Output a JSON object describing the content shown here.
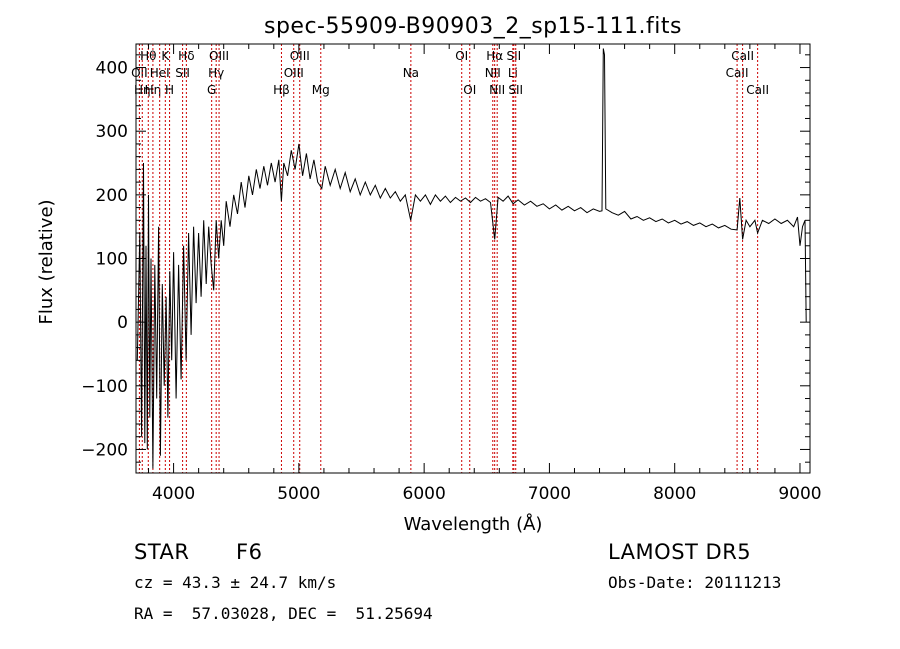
{
  "chart_data": {
    "type": "line",
    "title": "spec-55909-B90903_2_sp15-111.fits",
    "xlabel": "Wavelength (Å)",
    "ylabel": "Flux (relative)",
    "xlim": [
      3700,
      9080
    ],
    "ylim": [
      -237,
      437
    ],
    "xticks": [
      4000,
      5000,
      6000,
      7000,
      8000,
      9000
    ],
    "yticks": [
      -200,
      -100,
      0,
      100,
      200,
      300,
      400
    ],
    "grid": false,
    "line_color": "#000000",
    "marker_color": "#cc0000",
    "series": [
      {
        "values": [
          [
            3710,
            -60
          ],
          [
            3730,
            140
          ],
          [
            3745,
            -180
          ],
          [
            3760,
            250
          ],
          [
            3770,
            -190
          ],
          [
            3780,
            120
          ],
          [
            3790,
            -200
          ],
          [
            3800,
            200
          ],
          [
            3810,
            -150
          ],
          [
            3820,
            100
          ],
          [
            3835,
            -230
          ],
          [
            3850,
            90
          ],
          [
            3865,
            -120
          ],
          [
            3880,
            150
          ],
          [
            3895,
            -210
          ],
          [
            3910,
            60
          ],
          [
            3925,
            -100
          ],
          [
            3940,
            40
          ],
          [
            3955,
            -150
          ],
          [
            3970,
            80
          ],
          [
            3985,
            -60
          ],
          [
            4000,
            110
          ],
          [
            4020,
            -120
          ],
          [
            4040,
            90
          ],
          [
            4060,
            -90
          ],
          [
            4080,
            120
          ],
          [
            4100,
            -60
          ],
          [
            4120,
            140
          ],
          [
            4140,
            -20
          ],
          [
            4160,
            150
          ],
          [
            4180,
            30
          ],
          [
            4200,
            140
          ],
          [
            4220,
            40
          ],
          [
            4240,
            160
          ],
          [
            4260,
            60
          ],
          [
            4280,
            150
          ],
          [
            4300,
            90
          ],
          [
            4320,
            50
          ],
          [
            4340,
            160
          ],
          [
            4360,
            100
          ],
          [
            4380,
            160
          ],
          [
            4400,
            120
          ],
          [
            4420,
            190
          ],
          [
            4450,
            150
          ],
          [
            4480,
            200
          ],
          [
            4510,
            170
          ],
          [
            4540,
            220
          ],
          [
            4570,
            180
          ],
          [
            4600,
            230
          ],
          [
            4630,
            200
          ],
          [
            4660,
            240
          ],
          [
            4690,
            210
          ],
          [
            4720,
            245
          ],
          [
            4750,
            215
          ],
          [
            4780,
            250
          ],
          [
            4810,
            220
          ],
          [
            4840,
            255
          ],
          [
            4861,
            190
          ],
          [
            4880,
            250
          ],
          [
            4910,
            230
          ],
          [
            4940,
            270
          ],
          [
            4970,
            240
          ],
          [
            5000,
            280
          ],
          [
            5030,
            230
          ],
          [
            5060,
            265
          ],
          [
            5090,
            225
          ],
          [
            5120,
            255
          ],
          [
            5150,
            220
          ],
          [
            5183,
            210
          ],
          [
            5210,
            245
          ],
          [
            5250,
            215
          ],
          [
            5290,
            240
          ],
          [
            5330,
            210
          ],
          [
            5370,
            235
          ],
          [
            5410,
            205
          ],
          [
            5450,
            225
          ],
          [
            5490,
            200
          ],
          [
            5530,
            220
          ],
          [
            5570,
            200
          ],
          [
            5610,
            215
          ],
          [
            5650,
            195
          ],
          [
            5690,
            210
          ],
          [
            5730,
            195
          ],
          [
            5770,
            205
          ],
          [
            5810,
            190
          ],
          [
            5850,
            200
          ],
          [
            5893,
            160
          ],
          [
            5930,
            200
          ],
          [
            5970,
            190
          ],
          [
            6010,
            200
          ],
          [
            6050,
            185
          ],
          [
            6090,
            200
          ],
          [
            6130,
            190
          ],
          [
            6170,
            198
          ],
          [
            6210,
            188
          ],
          [
            6250,
            196
          ],
          [
            6290,
            190
          ],
          [
            6330,
            195
          ],
          [
            6370,
            188
          ],
          [
            6410,
            196
          ],
          [
            6450,
            190
          ],
          [
            6490,
            194
          ],
          [
            6530,
            188
          ],
          [
            6563,
            130
          ],
          [
            6590,
            196
          ],
          [
            6630,
            190
          ],
          [
            6670,
            198
          ],
          [
            6710,
            186
          ],
          [
            6750,
            192
          ],
          [
            6800,
            184
          ],
          [
            6850,
            190
          ],
          [
            6900,
            182
          ],
          [
            6950,
            186
          ],
          [
            7000,
            178
          ],
          [
            7050,
            184
          ],
          [
            7100,
            176
          ],
          [
            7150,
            182
          ],
          [
            7200,
            175
          ],
          [
            7250,
            180
          ],
          [
            7300,
            172
          ],
          [
            7350,
            178
          ],
          [
            7400,
            174
          ],
          [
            7420,
            175
          ],
          [
            7430,
            430
          ],
          [
            7440,
            420
          ],
          [
            7450,
            178
          ],
          [
            7500,
            172
          ],
          [
            7550,
            168
          ],
          [
            7600,
            174
          ],
          [
            7650,
            162
          ],
          [
            7700,
            166
          ],
          [
            7750,
            160
          ],
          [
            7800,
            164
          ],
          [
            7850,
            158
          ],
          [
            7900,
            162
          ],
          [
            7950,
            156
          ],
          [
            8000,
            160
          ],
          [
            8050,
            154
          ],
          [
            8100,
            158
          ],
          [
            8150,
            152
          ],
          [
            8200,
            156
          ],
          [
            8250,
            150
          ],
          [
            8300,
            154
          ],
          [
            8350,
            148
          ],
          [
            8400,
            152
          ],
          [
            8450,
            146
          ],
          [
            8498,
            145
          ],
          [
            8520,
            195
          ],
          [
            8542,
            130
          ],
          [
            8570,
            160
          ],
          [
            8600,
            150
          ],
          [
            8640,
            160
          ],
          [
            8662,
            140
          ],
          [
            8700,
            160
          ],
          [
            8750,
            155
          ],
          [
            8800,
            162
          ],
          [
            8850,
            155
          ],
          [
            8900,
            160
          ],
          [
            8950,
            150
          ],
          [
            8980,
            165
          ],
          [
            9000,
            120
          ],
          [
            9020,
            150
          ],
          [
            9040,
            160
          ],
          [
            9050,
            0
          ]
        ]
      }
    ],
    "markers": [
      {
        "x": 3727,
        "label": "OII",
        "row": 1
      },
      {
        "x": 3750,
        "label": "Hη",
        "row": 2
      },
      {
        "x": 3798,
        "label": "Hθ",
        "row": 0
      },
      {
        "x": 3835,
        "label": "Hη",
        "row": 2
      },
      {
        "x": 3889,
        "label": "HeI",
        "row": 1
      },
      {
        "x": 3934,
        "label": "K",
        "row": 0
      },
      {
        "x": 3968,
        "label": "H",
        "row": 2
      },
      {
        "x": 4072,
        "label": "SII",
        "row": 1
      },
      {
        "x": 4102,
        "label": "Hδ",
        "row": 0
      },
      {
        "x": 4304,
        "label": "G",
        "row": 2
      },
      {
        "x": 4340,
        "label": "Hγ",
        "row": 1
      },
      {
        "x": 4363,
        "label": "OIII",
        "row": 0
      },
      {
        "x": 4861,
        "label": "Hβ",
        "row": 2
      },
      {
        "x": 4959,
        "label": "OIII",
        "row": 1
      },
      {
        "x": 5007,
        "label": "OIII",
        "row": 0
      },
      {
        "x": 5175,
        "label": "Mg",
        "row": 2
      },
      {
        "x": 5894,
        "label": "Na",
        "row": 1
      },
      {
        "x": 6300,
        "label": "OI",
        "row": 0
      },
      {
        "x": 6364,
        "label": "OI",
        "row": 2
      },
      {
        "x": 6548,
        "label": "NII",
        "row": 1
      },
      {
        "x": 6563,
        "label": "Hα",
        "row": 0
      },
      {
        "x": 6583,
        "label": "NII",
        "row": 2
      },
      {
        "x": 6708,
        "label": "Li",
        "row": 1
      },
      {
        "x": 6716,
        "label": "SII",
        "row": 0
      },
      {
        "x": 6731,
        "label": "SII",
        "row": 2
      },
      {
        "x": 8498,
        "label": "CaII",
        "row": 1
      },
      {
        "x": 8542,
        "label": "CaII",
        "row": 0
      },
      {
        "x": 8662,
        "label": "CaII",
        "row": 2
      }
    ]
  },
  "info": {
    "object_class": "STAR",
    "subclass": "F6",
    "survey": "LAMOST DR5",
    "cz": "cz = 43.3 ± 24.7 km/s",
    "obs_date": "Obs-Date: 20111213",
    "coords": "RA =  57.03028, DEC =  51.25694"
  }
}
